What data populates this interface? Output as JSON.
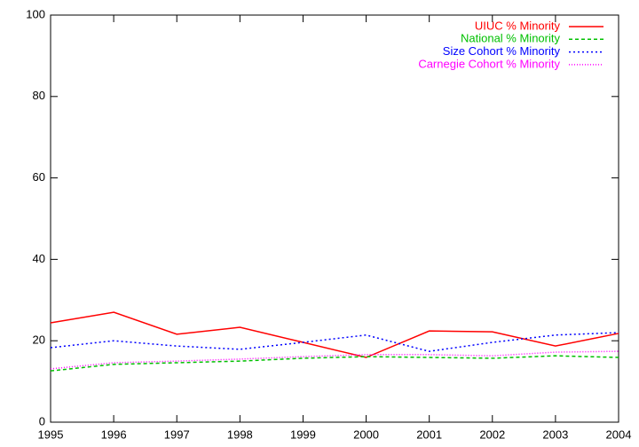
{
  "chart_data": {
    "type": "line",
    "x": [
      1995,
      1996,
      1997,
      1998,
      1999,
      2000,
      2001,
      2002,
      2003,
      2004
    ],
    "series": [
      {
        "name": "UIUC % Minority",
        "color": "#ff0000",
        "values": [
          24.4,
          27.0,
          21.6,
          23.3,
          19.6,
          15.9,
          22.4,
          22.2,
          18.7,
          21.8
        ]
      },
      {
        "name": "National % Minority",
        "color": "#00c000",
        "values": [
          12.6,
          14.2,
          14.6,
          15.0,
          15.7,
          16.1,
          15.9,
          15.7,
          16.3,
          15.9
        ]
      },
      {
        "name": "Size Cohort % Minority",
        "color": "#0000ff",
        "values": [
          18.3,
          20.0,
          18.7,
          17.9,
          19.6,
          21.4,
          17.4,
          19.6,
          21.4,
          22.0
        ]
      },
      {
        "name": "Carnegie Cohort % Minority",
        "color": "#ff00ff",
        "values": [
          13.1,
          14.6,
          15.0,
          15.5,
          16.1,
          16.6,
          16.6,
          16.3,
          17.2,
          17.4
        ]
      }
    ],
    "xlim": [
      1995,
      2004
    ],
    "xticks": [
      1995,
      1996,
      1997,
      1998,
      1999,
      2000,
      2001,
      2002,
      2003,
      2004
    ],
    "ylim": [
      0,
      100
    ],
    "yticks": [
      0,
      20,
      40,
      60,
      80,
      100
    ],
    "legend": "top-right"
  }
}
